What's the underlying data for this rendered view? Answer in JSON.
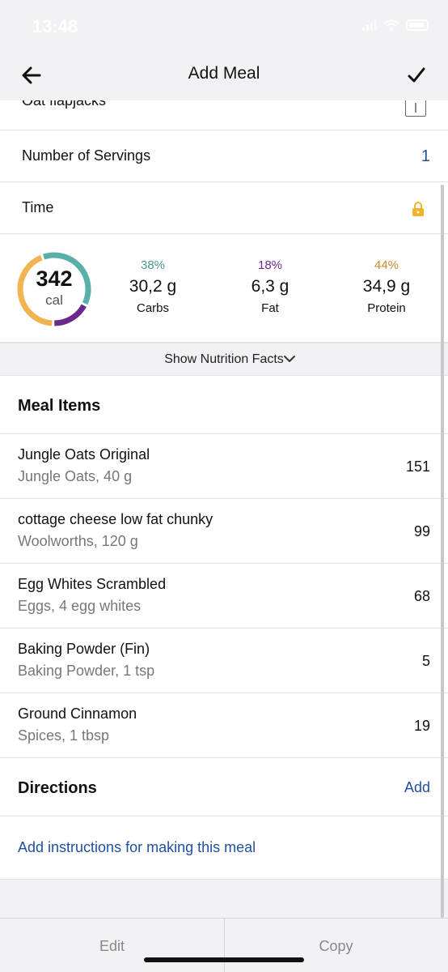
{
  "status": {
    "time": "13:48"
  },
  "nav": {
    "title": "Add Meal"
  },
  "recipe": {
    "partial_title": "Oat flapjacks"
  },
  "servings": {
    "label": "Number of Servings",
    "value": "1"
  },
  "time_row": {
    "label": "Time"
  },
  "calories": {
    "value": "342",
    "unit": "cal"
  },
  "macros": [
    {
      "pct": "38%",
      "grams": "30,2 g",
      "name": "Carbs",
      "fraction": 0.38,
      "color": "#5ab0a8"
    },
    {
      "pct": "18%",
      "grams": "6,3 g",
      "name": "Fat",
      "fraction": 0.18,
      "color": "#6a2a8c"
    },
    {
      "pct": "44%",
      "grams": "34,9 g",
      "name": "Protein",
      "fraction": 0.44,
      "color": "#f0b552"
    }
  ],
  "nutrition_toggle": "Show Nutrition Facts",
  "meal_items": {
    "title": "Meal Items",
    "items": [
      {
        "name": "Jungle Oats Original",
        "detail": "Jungle Oats, 40 g",
        "calories": "151"
      },
      {
        "name": "cottage cheese low fat chunky",
        "detail": "Woolworths, 120 g",
        "calories": "99"
      },
      {
        "name": "Egg Whites Scrambled",
        "detail": "Eggs, 4 egg whites",
        "calories": "68"
      },
      {
        "name": "Baking Powder (Fin)",
        "detail": "Baking Powder, 1 tsp",
        "calories": "5"
      },
      {
        "name": "Ground Cinnamon",
        "detail": "Spices, 1 tbsp",
        "calories": "19"
      }
    ]
  },
  "directions": {
    "title": "Directions",
    "add_label": "Add",
    "instructions_link": "Add instructions for making this meal"
  },
  "bottom": {
    "edit_label": "Edit",
    "copy_label": "Copy"
  },
  "colors": {
    "accent_blue": "#1f4fa0",
    "lock": "#f0b429",
    "fat_text": "#6a2a8c",
    "protein_text": "#c88a2a",
    "carbs_text": "#4f9a93"
  }
}
